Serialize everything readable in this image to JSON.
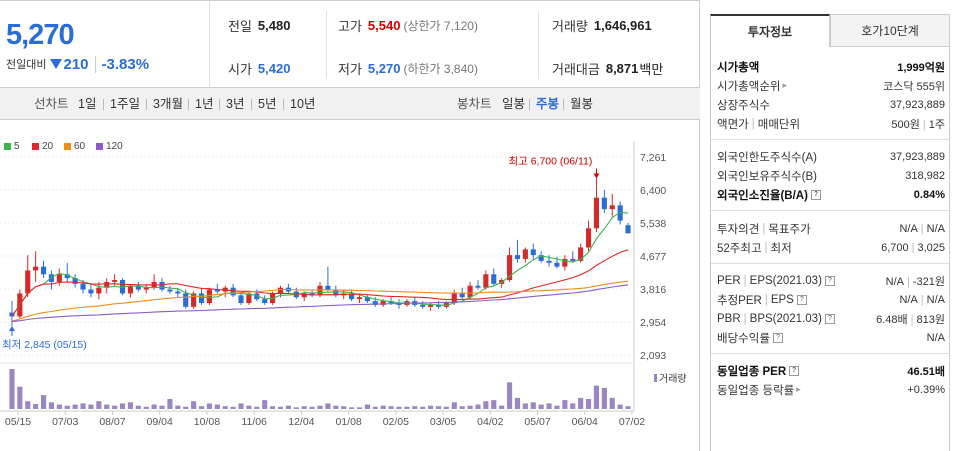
{
  "quote": {
    "current_price": "5,270",
    "change_label": "전일대비",
    "change_amount": "210",
    "change_percent": "-3.83%",
    "prev_close": {
      "label": "전일",
      "value": "5,480"
    },
    "high": {
      "label": "고가",
      "value": "5,540",
      "sub": "(상한가 7,120)"
    },
    "volume": {
      "label": "거래량",
      "value": "1,646,961"
    },
    "open": {
      "label": "시가",
      "value": "5,420"
    },
    "low": {
      "label": "저가",
      "value": "5,270",
      "sub": "(하한가 3,840)"
    },
    "amount": {
      "label": "거래대금",
      "value": "8,871",
      "unit": "백만"
    }
  },
  "period_bar": {
    "line_chart_title": "선차트",
    "line_periods": [
      "1일",
      "1주일",
      "3개월",
      "1년",
      "3년",
      "5년",
      "10년"
    ],
    "candle_chart_title": "봉차트",
    "candle_periods": [
      "일봉",
      "주봉",
      "월봉"
    ],
    "active_candle": "주봉"
  },
  "chart_data": {
    "type": "candlestick",
    "legend": [
      {
        "name": "5",
        "color": "#3cb44b"
      },
      {
        "name": "20",
        "color": "#e0282c"
      },
      {
        "name": "60",
        "color": "#f08c1e"
      },
      {
        "name": "120",
        "color": "#8a5cc8"
      }
    ],
    "y_ticks": [
      "7,261",
      "6,400",
      "5,538",
      "4,677",
      "3,816",
      "2,954",
      "2,093"
    ],
    "ylim": [
      2093,
      7261
    ],
    "x_ticks": [
      "05/15",
      "07/03",
      "08/07",
      "09/04",
      "10/08",
      "11/06",
      "12/04",
      "01/08",
      "02/05",
      "03/05",
      "04/02",
      "05/07",
      "06/04",
      "07/02"
    ],
    "high_annotation": "최고 6,700 (06/11)",
    "low_annotation": "최저 2,845 (05/15)",
    "volume_label": "거래량",
    "colors": {
      "up": "#d42a2a",
      "down": "#2a6dd8",
      "ma5": "#3cb44b",
      "ma20": "#e0282c",
      "ma60": "#f08c1e",
      "ma120": "#8a5cc8",
      "volume": "#9b86c4"
    },
    "candles": [
      [
        3200,
        3500,
        2850,
        3100
      ],
      [
        3100,
        3800,
        3050,
        3700
      ],
      [
        3700,
        4700,
        3600,
        4300
      ],
      [
        4300,
        4800,
        4000,
        4400
      ],
      [
        4400,
        4550,
        4100,
        4200
      ],
      [
        4200,
        4300,
        3800,
        4000
      ],
      [
        4000,
        4350,
        3900,
        4200
      ],
      [
        4200,
        4500,
        4000,
        4100
      ],
      [
        4100,
        4200,
        3850,
        3950
      ],
      [
        3950,
        4050,
        3700,
        3800
      ],
      [
        3800,
        3950,
        3600,
        3700
      ],
      [
        3700,
        4000,
        3550,
        3850
      ],
      [
        3850,
        4100,
        3700,
        4000
      ],
      [
        4000,
        4200,
        3900,
        4050
      ],
      [
        4050,
        4100,
        3650,
        3700
      ],
      [
        3700,
        3950,
        3600,
        3900
      ],
      [
        3900,
        4000,
        3750,
        3800
      ],
      [
        3800,
        3950,
        3700,
        3850
      ],
      [
        3850,
        4200,
        3800,
        4000
      ],
      [
        4000,
        4100,
        3750,
        3800
      ],
      [
        3800,
        3900,
        3700,
        3750
      ],
      [
        3750,
        3850,
        3600,
        3700
      ],
      [
        3700,
        3800,
        3300,
        3350
      ],
      [
        3350,
        3750,
        3300,
        3700
      ],
      [
        3700,
        3850,
        3400,
        3450
      ],
      [
        3450,
        3850,
        3400,
        3800
      ],
      [
        3800,
        3950,
        3700,
        3750
      ],
      [
        3750,
        3900,
        3600,
        3850
      ],
      [
        3850,
        3950,
        3600,
        3650
      ],
      [
        3650,
        3700,
        3400,
        3450
      ],
      [
        3450,
        3750,
        3400,
        3700
      ],
      [
        3700,
        3800,
        3500,
        3550
      ],
      [
        3550,
        3650,
        3400,
        3450
      ],
      [
        3450,
        3750,
        3400,
        3700
      ],
      [
        3700,
        3900,
        3600,
        3850
      ],
      [
        3850,
        3950,
        3700,
        3750
      ],
      [
        3750,
        3850,
        3550,
        3600
      ],
      [
        3600,
        3750,
        3500,
        3700
      ],
      [
        3700,
        3800,
        3600,
        3650
      ],
      [
        3650,
        4000,
        3600,
        3900
      ],
      [
        3900,
        4400,
        3750,
        3800
      ],
      [
        3800,
        3900,
        3600,
        3650
      ],
      [
        3650,
        3800,
        3550,
        3700
      ],
      [
        3700,
        3800,
        3500,
        3550
      ],
      [
        3550,
        3700,
        3450,
        3600
      ],
      [
        3600,
        3650,
        3450,
        3500
      ],
      [
        3500,
        3600,
        3350,
        3400
      ],
      [
        3400,
        3550,
        3350,
        3500
      ],
      [
        3500,
        3600,
        3400,
        3450
      ],
      [
        3450,
        3550,
        3300,
        3400
      ],
      [
        3400,
        3550,
        3350,
        3500
      ],
      [
        3500,
        3600,
        3350,
        3400
      ],
      [
        3400,
        3500,
        3300,
        3350
      ],
      [
        3350,
        3450,
        3250,
        3400
      ],
      [
        3400,
        3500,
        3300,
        3350
      ],
      [
        3350,
        3500,
        3300,
        3450
      ],
      [
        3450,
        3800,
        3400,
        3700
      ],
      [
        3700,
        3850,
        3550,
        3600
      ],
      [
        3600,
        4000,
        3550,
        3900
      ],
      [
        3900,
        4050,
        3800,
        3850
      ],
      [
        3850,
        4300,
        3800,
        4200
      ],
      [
        4200,
        4350,
        3900,
        3950
      ],
      [
        3950,
        4100,
        3850,
        4050
      ],
      [
        4050,
        4900,
        4000,
        4700
      ],
      [
        4700,
        5100,
        4500,
        4600
      ],
      [
        4600,
        4900,
        4500,
        4850
      ],
      [
        4850,
        5000,
        4600,
        4700
      ],
      [
        4700,
        4800,
        4500,
        4550
      ],
      [
        4550,
        4700,
        4400,
        4500
      ],
      [
        4500,
        4650,
        4350,
        4400
      ],
      [
        4400,
        4700,
        4300,
        4600
      ],
      [
        4600,
        4800,
        4500,
        4550
      ],
      [
        4550,
        5000,
        4500,
        4900
      ],
      [
        4900,
        5600,
        4800,
        5400
      ],
      [
        5400,
        6700,
        5300,
        6200
      ],
      [
        6200,
        6400,
        5800,
        5900
      ],
      [
        5900,
        6300,
        5700,
        6000
      ],
      [
        6000,
        6100,
        5500,
        5600
      ],
      [
        5480,
        5540,
        5270,
        5270
      ]
    ],
    "volumes": [
      72,
      40,
      14,
      9,
      25,
      12,
      8,
      6,
      8,
      10,
      8,
      14,
      8,
      6,
      10,
      12,
      6,
      4,
      8,
      6,
      18,
      6,
      4,
      14,
      5,
      10,
      8,
      5,
      4,
      10,
      6,
      4,
      16,
      5,
      4,
      6,
      3,
      5,
      4,
      6,
      10,
      6,
      5,
      3,
      3,
      8,
      4,
      6,
      5,
      4,
      4,
      5,
      4,
      6,
      5,
      4,
      12,
      5,
      6,
      8,
      14,
      16,
      6,
      48,
      20,
      10,
      12,
      8,
      10,
      6,
      16,
      10,
      20,
      18,
      42,
      38,
      20,
      8,
      5
    ]
  },
  "invest_info": {
    "tabs": [
      "투자정보",
      "호가10단계"
    ],
    "rows": [
      {
        "label": "시가총액",
        "value": "1,999억원"
      },
      {
        "label": "시가총액순위",
        "value": "코스닥 555위"
      },
      {
        "label": "상장주식수",
        "value": "37,923,889"
      },
      {
        "label": "액면가",
        "label2": "매매단위",
        "value": "500원",
        "value2": "1주"
      },
      {
        "label": "외국인한도주식수(A)",
        "value": "37,923,889"
      },
      {
        "label": "외국인보유주식수(B)",
        "value": "318,982"
      },
      {
        "label": "외국인소진율(B/A)",
        "value": "0.84%"
      },
      {
        "label": "투자의견",
        "label2": "목표주가",
        "value": "N/A",
        "value2": "N/A"
      },
      {
        "label": "52주최고",
        "label2": "최저",
        "value": "6,700",
        "value2": "3,025"
      },
      {
        "label": "PER",
        "label2": "EPS(2021.03)",
        "value": "N/A",
        "value2": "-321원"
      },
      {
        "label": "추정PER",
        "label2": "EPS",
        "value": "N/A",
        "value2": "N/A"
      },
      {
        "label": "PBR",
        "label2": "BPS(2021.03)",
        "value": "6.48배",
        "value2": "813원"
      },
      {
        "label": "배당수익률",
        "value": "N/A"
      },
      {
        "label": "동일업종 PER",
        "value": "46.51배"
      },
      {
        "label": "동일업종 등락률",
        "value": "+0.39%"
      }
    ]
  }
}
